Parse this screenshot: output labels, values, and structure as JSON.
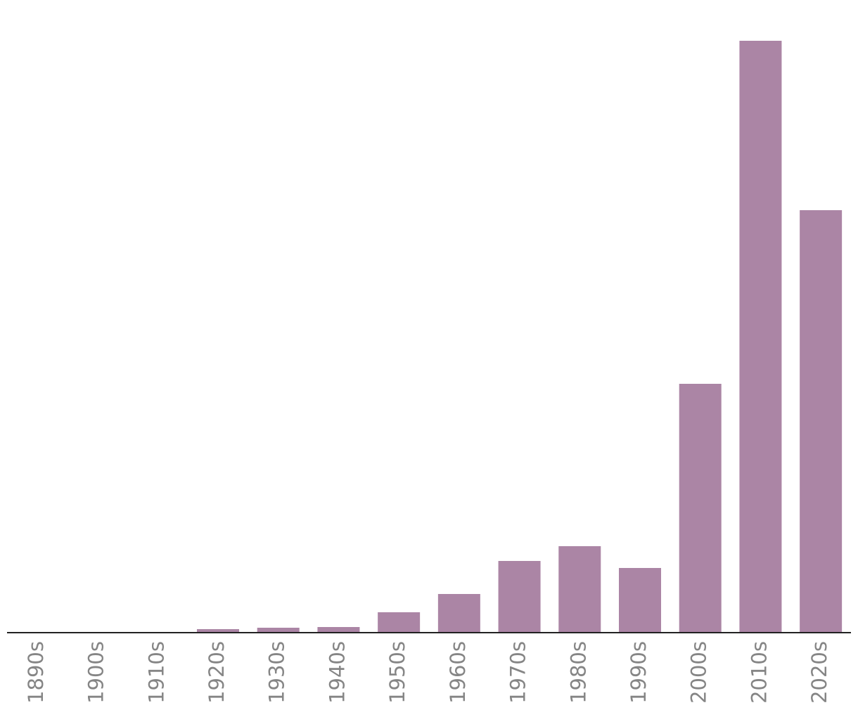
{
  "chart_data": {
    "type": "bar",
    "categories": [
      "1890s",
      "1900s",
      "1910s",
      "1920s",
      "1930s",
      "1940s",
      "1950s",
      "1960s",
      "1970s",
      "1980s",
      "1990s",
      "2000s",
      "2010s",
      "2020s"
    ],
    "values": [
      0,
      0,
      0,
      5,
      7,
      8,
      29,
      55,
      102,
      123,
      92,
      354,
      842,
      601
    ],
    "color": "#ab85a5",
    "ylim": [
      0,
      900
    ]
  }
}
